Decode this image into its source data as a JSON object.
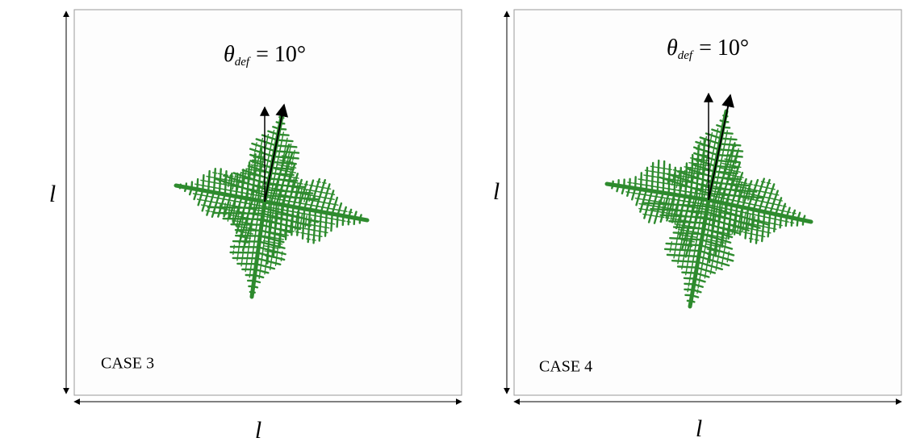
{
  "panels": [
    {
      "symbol": "θ",
      "subscript": "def",
      "relation": "= 10°",
      "case_label": "CASE 3",
      "height_label": "l",
      "width_label": "l"
    },
    {
      "symbol": "θ",
      "subscript": "def",
      "relation": "= 10°",
      "case_label": "CASE 4",
      "height_label": "l",
      "width_label": "l"
    }
  ]
}
